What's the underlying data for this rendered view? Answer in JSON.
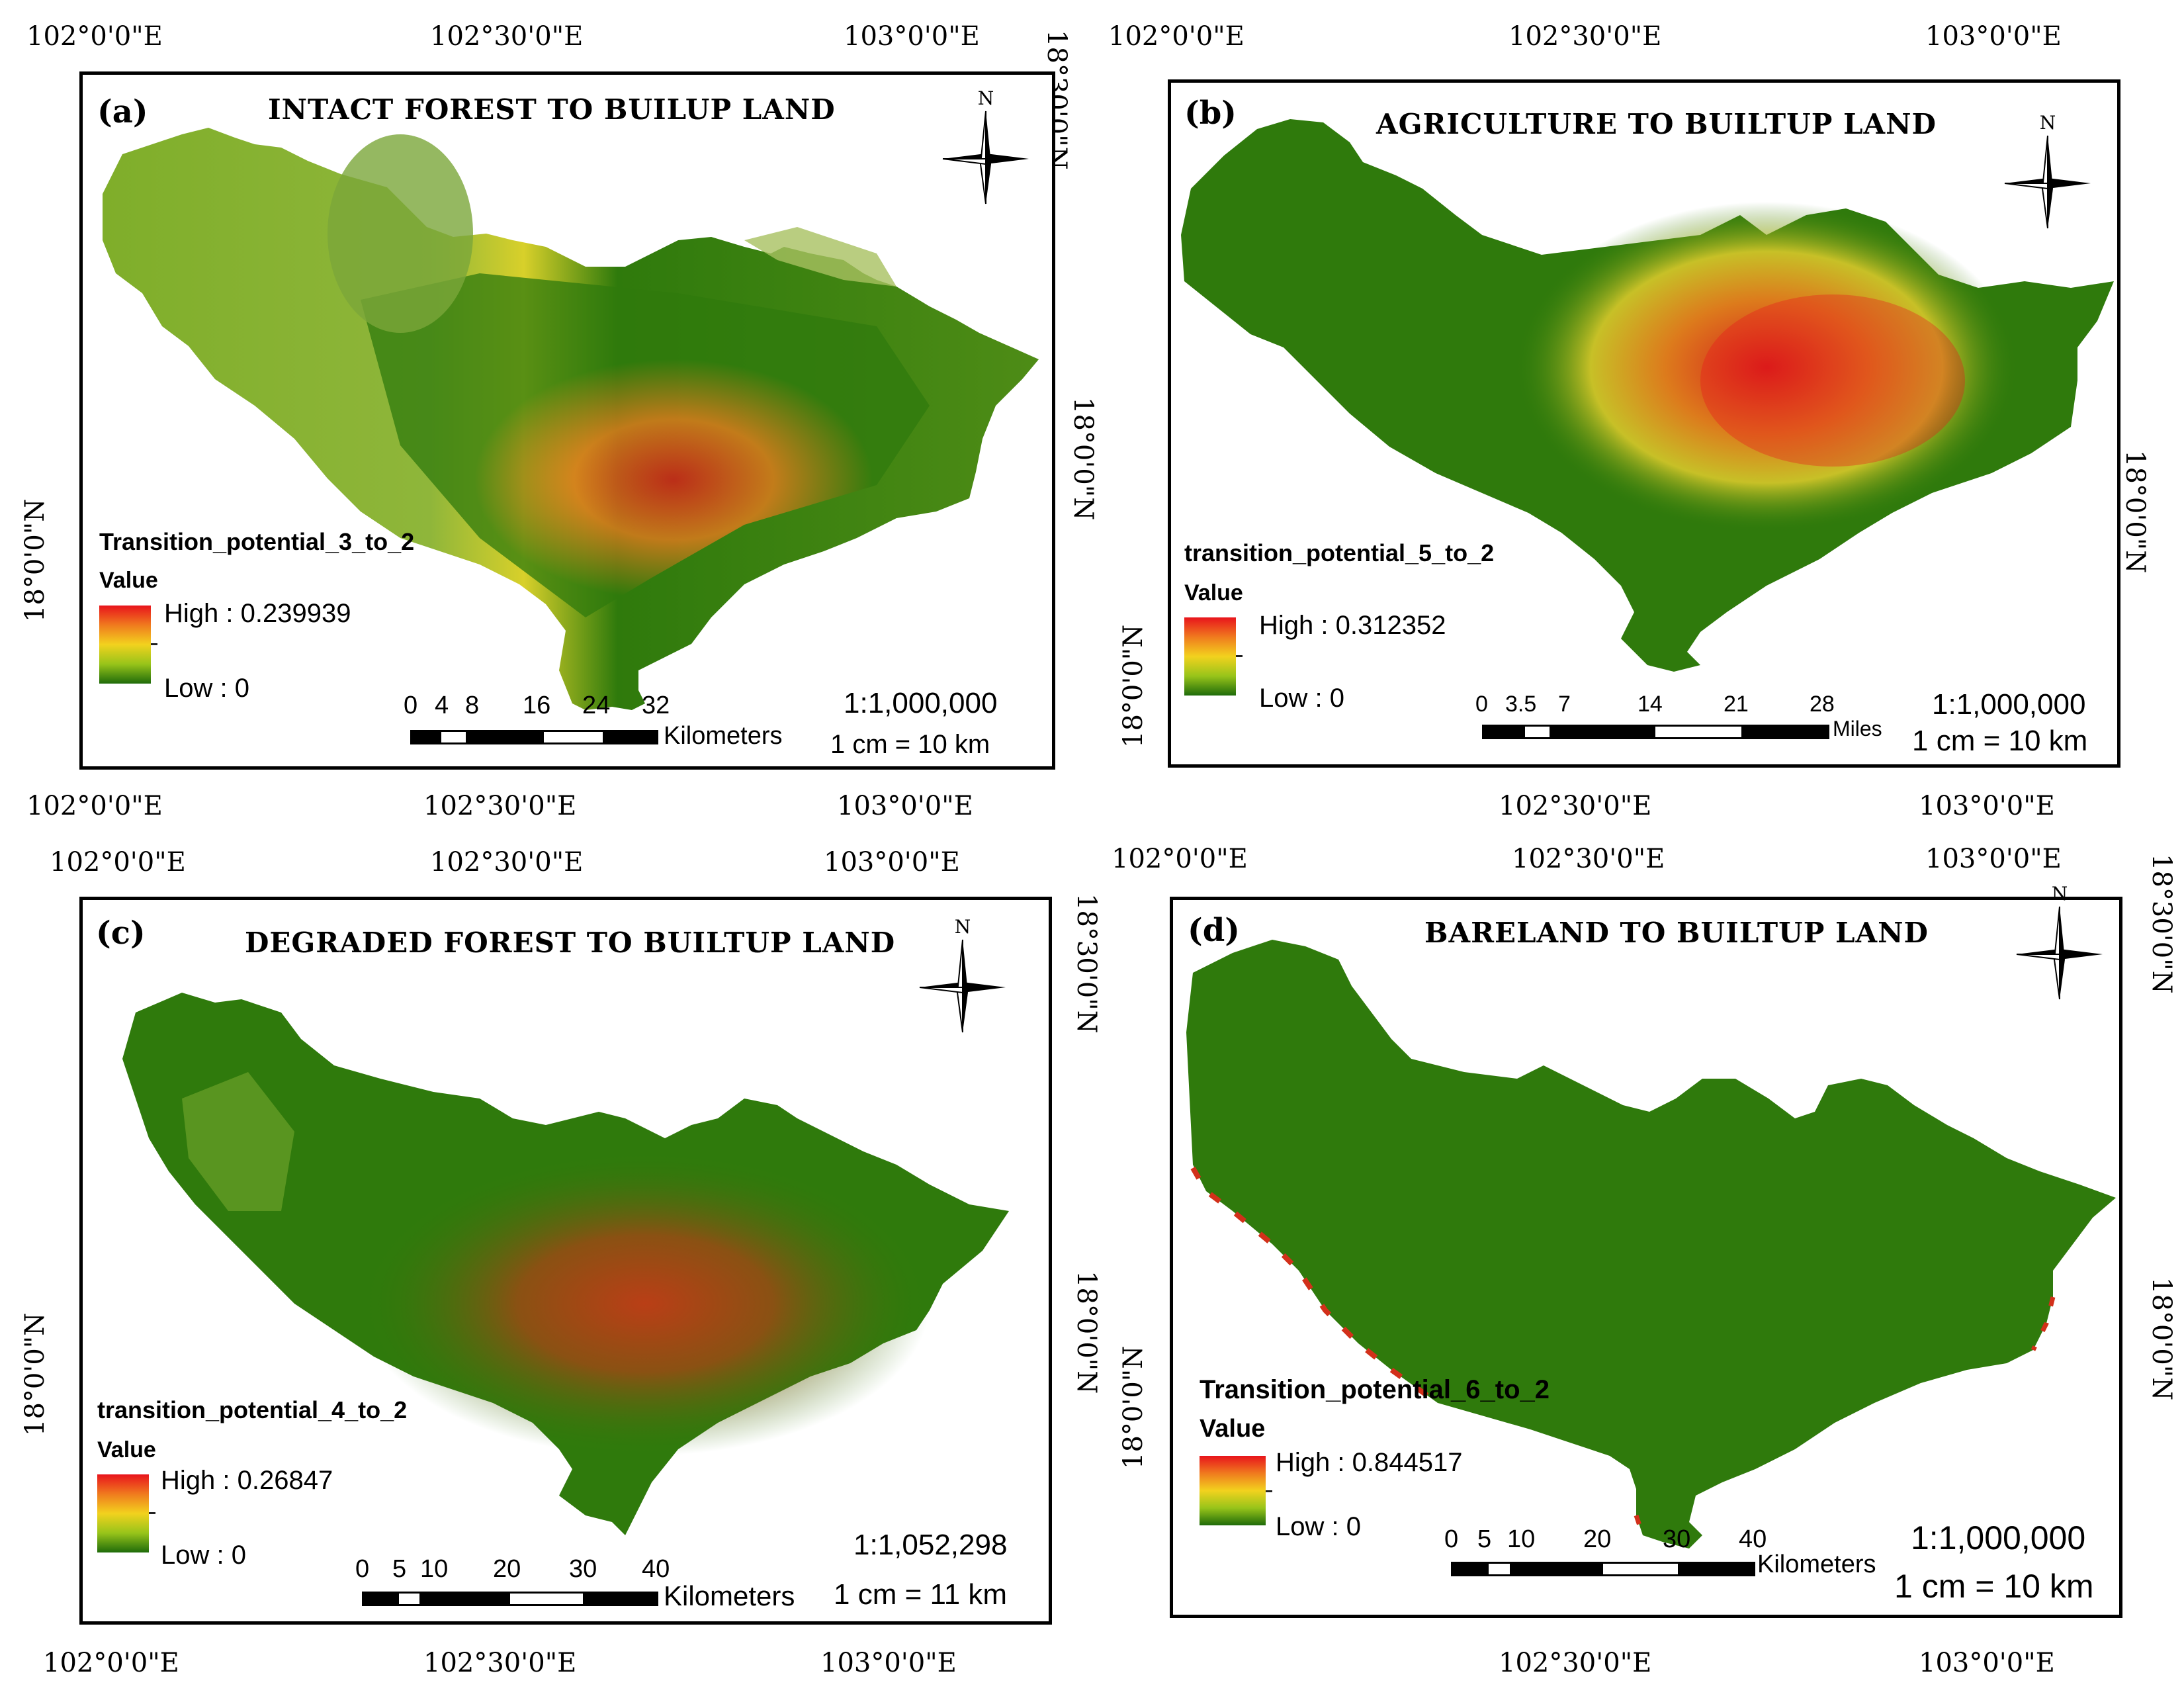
{
  "colors": {
    "high": "#e8141c",
    "mid": "#f2d21e",
    "low": "#1f6b0a",
    "background_green": "#2f7a0c",
    "frame": "#000000"
  },
  "icons": [
    "north-arrow-icon"
  ],
  "panels": [
    {
      "label": "(a)",
      "title": "INTACT FOREST TO BUILUP LAND",
      "layer": "Transition_potential_3_to_2",
      "value_label": "Value",
      "high": "High : 0.239939",
      "low": "Low : 0",
      "north": "N",
      "scale_ticks": [
        "0",
        "4",
        "8",
        "16",
        "24",
        "32"
      ],
      "scale_unit": "Kilometers",
      "ratio": "1:1,000,000",
      "cm_ratio": "1 cm = 10 km",
      "lon_top": [
        "102°0'0\"E",
        "102°30'0\"E",
        "103°0'0\"E"
      ],
      "lon_bottom": [
        "102°0'0\"E",
        "102°30'0\"E",
        "103°0'0\"E"
      ],
      "lat_left": [
        "18°0'0\"N"
      ],
      "lat_right": [
        "18°30'0\"N",
        "18°0'0\"N"
      ]
    },
    {
      "label": "(b)",
      "title": "AGRICULTURE TO BUILTUP LAND",
      "layer": "transition_potential_5_to_2",
      "value_label": "Value",
      "high": "High : 0.312352",
      "low": "Low : 0",
      "north": "N",
      "scale_ticks": [
        "0",
        "3.5",
        "7",
        "14",
        "21",
        "28"
      ],
      "scale_unit": "Miles",
      "ratio": "1:1,000,000",
      "cm_ratio": "1 cm = 10 km",
      "lon_top": [
        "102°0'0\"E",
        "102°30'0\"E",
        "103°0'0\"E"
      ],
      "lon_bottom": [
        "102°30'0\"E",
        "103°0'0\"E"
      ],
      "lat_right": [
        "18°0'0\"N"
      ]
    },
    {
      "label": "(c)",
      "title": "DEGRADED FOREST TO BUILTUP LAND",
      "layer": "transition_potential_4_to_2",
      "value_label": "Value",
      "high": "High : 0.26847",
      "low": "Low : 0",
      "north": "N",
      "scale_ticks": [
        "0",
        "5",
        "10",
        "20",
        "30",
        "40"
      ],
      "scale_unit": "Kilometers",
      "ratio": "1:1,052,298",
      "cm_ratio": "1 cm = 11 km",
      "lon_top": [
        "102°0'0\"E",
        "102°30'0\"E",
        "103°0'0\"E"
      ],
      "lon_bottom": [
        "102°0'0\"E",
        "102°30'0\"E",
        "103°0'0\"E"
      ],
      "lat_left": [
        "18°0'0\"N"
      ],
      "lat_right": [
        "18°30'0\"N",
        "18°0'0\"N"
      ]
    },
    {
      "label": "(d)",
      "title": "BARELAND TO BUILTUP LAND",
      "layer": "Transition_potential_6_to_2",
      "value_label": "Value",
      "high": "High : 0.844517",
      "low": "Low : 0",
      "north": "N",
      "scale_ticks": [
        "0",
        "5",
        "10",
        "20",
        "30",
        "40"
      ],
      "scale_unit": "Kilometers",
      "ratio": "1:1,000,000",
      "cm_ratio": "1 cm = 10 km",
      "lon_top": [
        "102°0'0\"E",
        "102°30'0\"E",
        "103°0'0\"E"
      ],
      "lon_bottom": [
        "102°30'0\"E",
        "103°0'0\"E"
      ],
      "lat_right": [
        "18°30'0\"N",
        "18°0'0\"N"
      ]
    }
  ]
}
